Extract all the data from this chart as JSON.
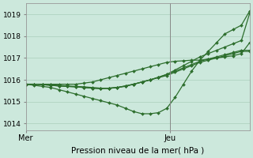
{
  "title": "",
  "xlabel": "Pression niveau de la mer( hPa )",
  "ylabel": "",
  "bg_color": "#cce8dc",
  "grid_color": "#aacfbb",
  "line_color": "#2d6e2d",
  "ylim": [
    1013.7,
    1019.5
  ],
  "xlim": [
    0,
    28
  ],
  "yticks": [
    1014,
    1015,
    1016,
    1017,
    1018,
    1019
  ],
  "ytick_labels": [
    "1014",
    "1015",
    "1016",
    "1017",
    "1018",
    "1019"
  ],
  "xtick_positions": [
    0,
    18
  ],
  "xtick_labels": [
    "Mer",
    "Jeu"
  ],
  "vline_x": 18,
  "series": [
    [
      1015.8,
      1015.8,
      1015.8,
      1015.8,
      1015.8,
      1015.8,
      1015.8,
      1015.85,
      1015.9,
      1016.0,
      1016.1,
      1016.2,
      1016.3,
      1016.4,
      1016.5,
      1016.6,
      1016.7,
      1016.8,
      1016.85,
      1016.87,
      1016.9,
      1016.9,
      1016.95,
      1017.0,
      1017.05,
      1017.1,
      1017.2,
      1017.7
    ],
    [
      1015.8,
      1015.75,
      1015.7,
      1015.65,
      1015.55,
      1015.45,
      1015.35,
      1015.25,
      1015.15,
      1015.05,
      1014.95,
      1014.85,
      1014.7,
      1014.55,
      1014.45,
      1014.45,
      1014.5,
      1014.7,
      1015.2,
      1015.8,
      1016.4,
      1016.9,
      1017.3,
      1017.7,
      1018.1,
      1018.3,
      1018.5,
      1019.15
    ],
    [
      1015.8,
      1015.8,
      1015.8,
      1015.78,
      1015.75,
      1015.72,
      1015.7,
      1015.68,
      1015.65,
      1015.62,
      1015.6,
      1015.65,
      1015.7,
      1015.8,
      1015.9,
      1016.0,
      1016.1,
      1016.2,
      1016.35,
      1016.5,
      1016.65,
      1016.8,
      1016.9,
      1017.0,
      1017.1,
      1017.2,
      1017.3,
      1017.3
    ],
    [
      1015.8,
      1015.8,
      1015.78,
      1015.75,
      1015.72,
      1015.7,
      1015.68,
      1015.65,
      1015.62,
      1015.6,
      1015.62,
      1015.65,
      1015.72,
      1015.8,
      1015.9,
      1016.0,
      1016.12,
      1016.25,
      1016.4,
      1016.55,
      1016.7,
      1016.85,
      1016.95,
      1017.05,
      1017.15,
      1017.25,
      1017.35,
      1017.35
    ],
    [
      1015.8,
      1015.8,
      1015.78,
      1015.75,
      1015.72,
      1015.7,
      1015.68,
      1015.65,
      1015.62,
      1015.6,
      1015.62,
      1015.65,
      1015.72,
      1015.8,
      1015.9,
      1016.0,
      1016.12,
      1016.25,
      1016.45,
      1016.65,
      1016.85,
      1017.05,
      1017.2,
      1017.35,
      1017.5,
      1017.65,
      1017.8,
      1019.05
    ]
  ],
  "marker": "D",
  "markersize": 2.0,
  "linewidth": 0.9
}
